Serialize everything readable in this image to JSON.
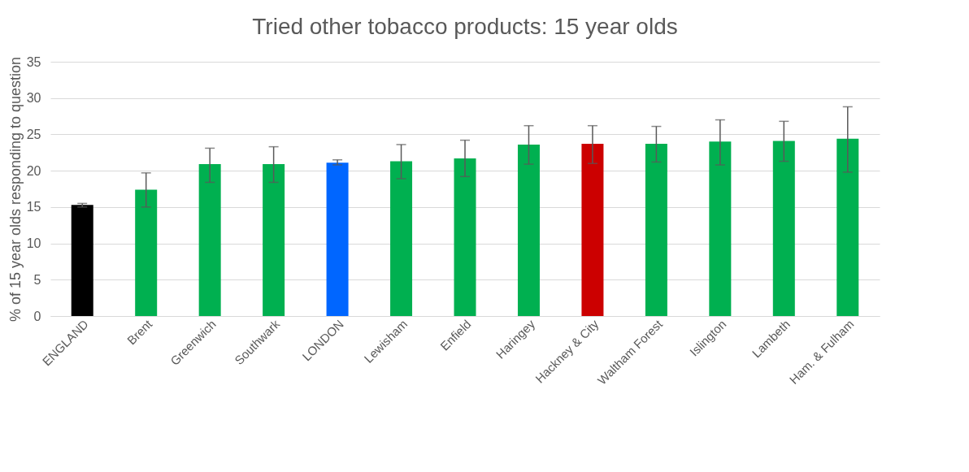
{
  "chart_data": {
    "type": "bar",
    "title": "Tried other tobacco products: 15 year olds",
    "ylabel": "% of 15 year olds responding to question",
    "categories": [
      "ENGLAND",
      "Brent",
      "Greenwich",
      "Southwark",
      "LONDON",
      "Lewisham",
      "Enfield",
      "Haringey",
      "Hackney & City",
      "Waltham Forest",
      "Islington",
      "Lambeth",
      "Ham. & Fulham"
    ],
    "values": [
      15.3,
      17.4,
      20.9,
      20.9,
      21.1,
      21.3,
      21.7,
      23.6,
      23.7,
      23.7,
      24.0,
      24.1,
      24.4
    ],
    "colors": [
      "#000000",
      "#00b050",
      "#00b050",
      "#00b050",
      "#0066ff",
      "#00b050",
      "#00b050",
      "#00b050",
      "#cc0000",
      "#00b050",
      "#00b050",
      "#00b050",
      "#00b050"
    ],
    "errors": [
      [
        15.0,
        15.5
      ],
      [
        15.0,
        19.7
      ],
      [
        18.4,
        23.1
      ],
      [
        18.4,
        23.3
      ],
      [
        20.8,
        21.5
      ],
      [
        18.9,
        23.6
      ],
      [
        19.2,
        24.2
      ],
      [
        20.9,
        26.2
      ],
      [
        21.0,
        26.2
      ],
      [
        21.2,
        26.1
      ],
      [
        20.8,
        27.0
      ],
      [
        21.3,
        26.8
      ],
      [
        19.8,
        28.8
      ]
    ],
    "ylim": [
      0,
      35
    ],
    "yticks": [
      0,
      5,
      10,
      15,
      20,
      25,
      30,
      35
    ],
    "grid": "y"
  }
}
